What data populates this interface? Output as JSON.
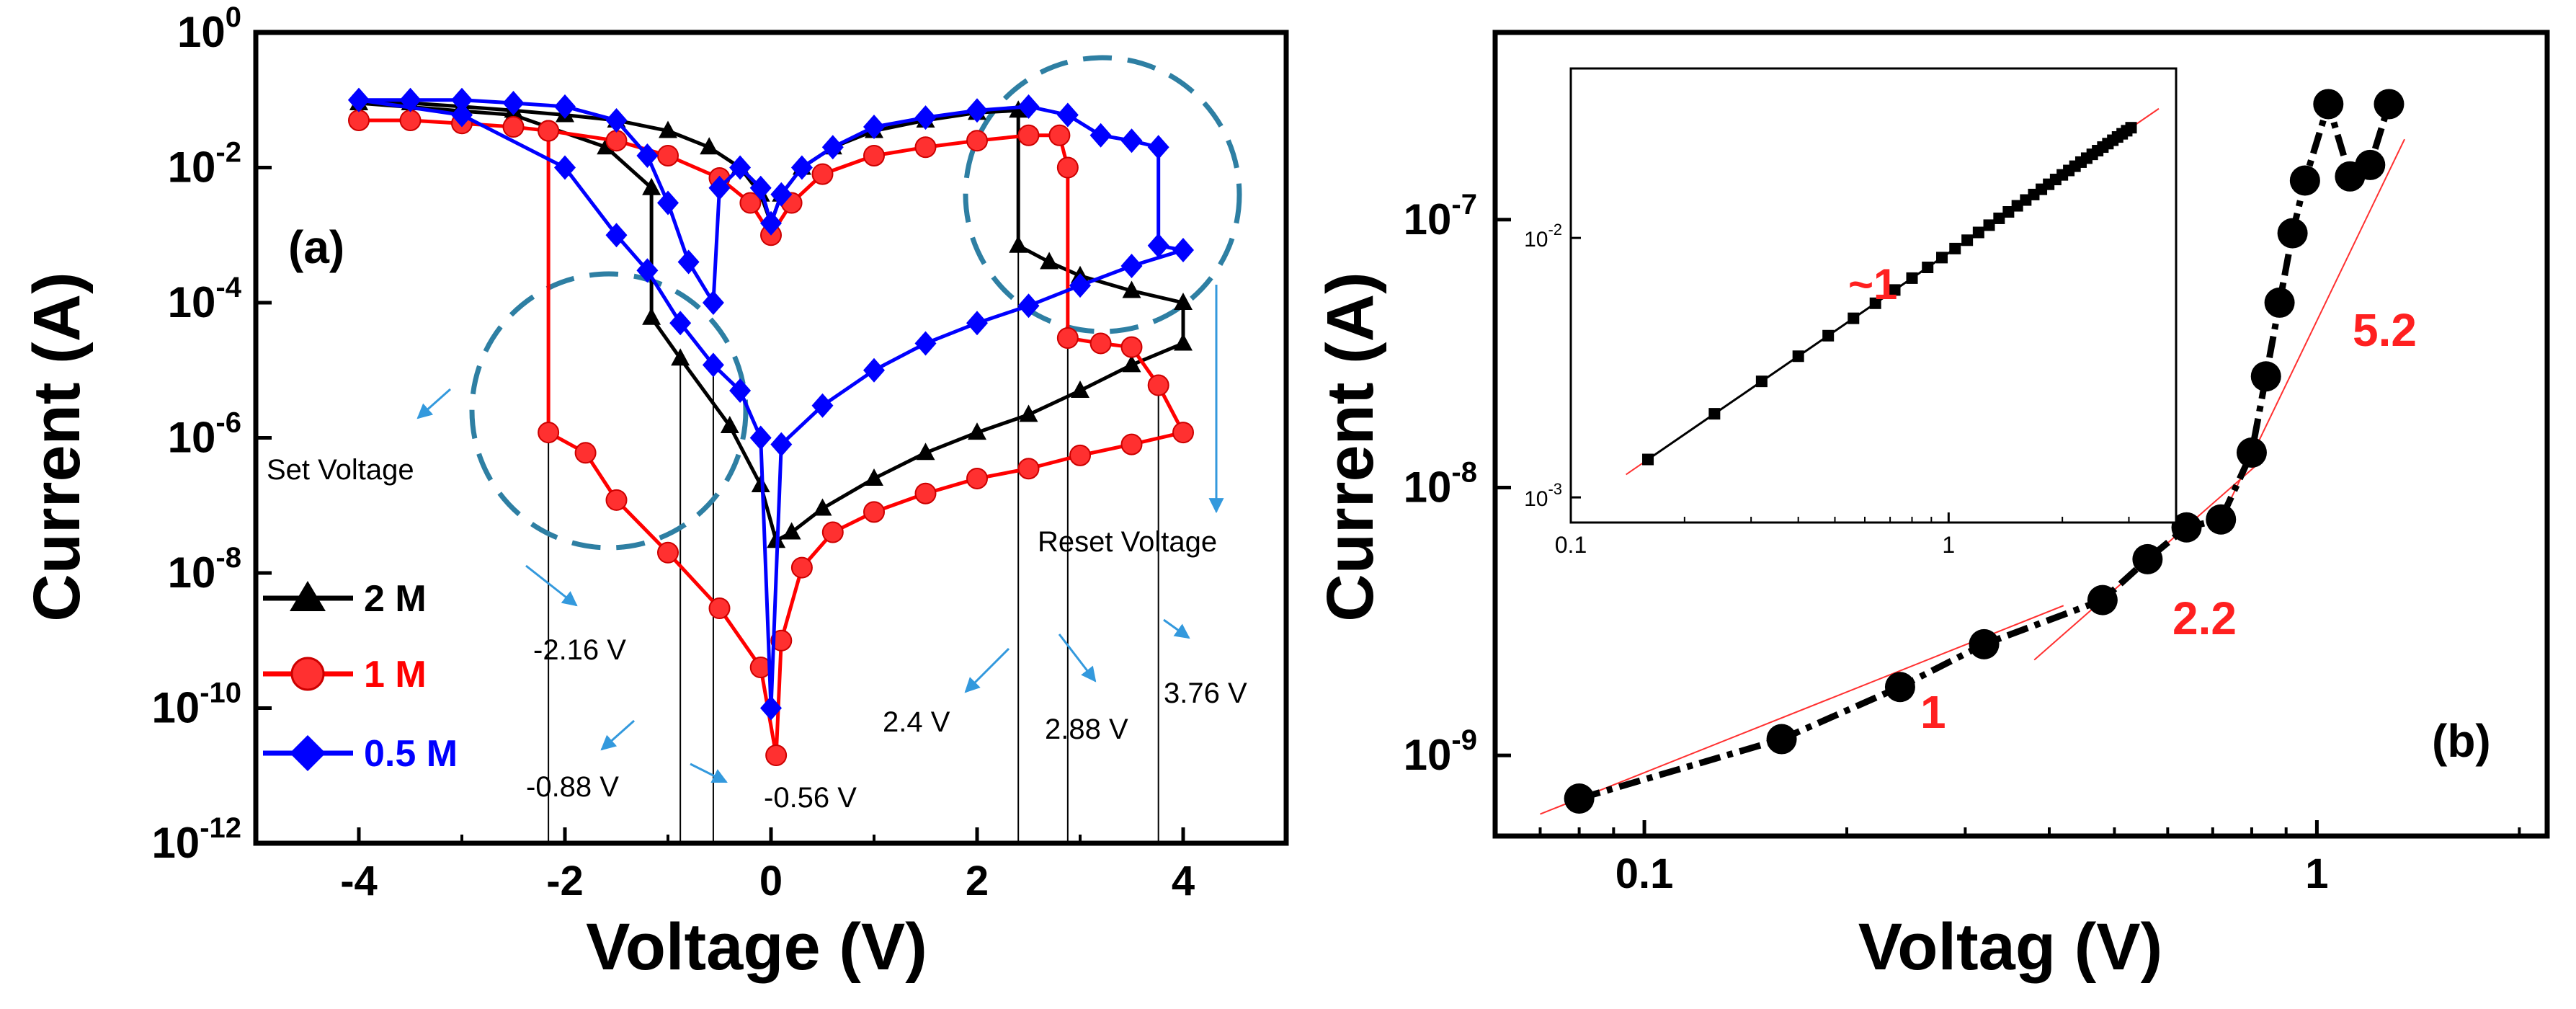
{
  "chart_data": [
    {
      "id": "a",
      "type": "line",
      "panel_label": "(a)",
      "xlabel": "Voltage (V)",
      "ylabel": "Current (A)",
      "xlim": [
        -5,
        5
      ],
      "ylim_log10": [
        -12,
        0
      ],
      "x_ticks": [
        -4,
        -2,
        0,
        2,
        4
      ],
      "x_tick_labels": [
        "-4",
        "-2",
        "0",
        "2",
        "4"
      ],
      "y_ticks_log10": [
        -12,
        -10,
        -8,
        -6,
        -4,
        -2,
        0
      ],
      "y_tick_base": "10",
      "y_tick_exponents": [
        "-12",
        "-10",
        "-8",
        "-6",
        "-4",
        "-2",
        "0"
      ],
      "series": [
        {
          "name": "2 M",
          "color": "#000000",
          "marker": "triangle",
          "points": [
            [
              -4,
              0.09
            ],
            [
              -3.5,
              0.09
            ],
            [
              -3,
              0.08
            ],
            [
              -2.5,
              0.07
            ],
            [
              -2,
              0.06
            ],
            [
              -1.5,
              0.05
            ],
            [
              -1,
              0.035
            ],
            [
              -0.6,
              0.02
            ],
            [
              -0.3,
              0.01
            ],
            [
              -0.1,
              0.004
            ],
            [
              0,
              0.0015
            ],
            [
              0.1,
              0.004
            ],
            [
              0.3,
              0.01
            ],
            [
              0.6,
              0.02
            ],
            [
              1,
              0.035
            ],
            [
              1.5,
              0.05
            ],
            [
              2,
              0.065
            ],
            [
              2.4,
              0.07
            ],
            [
              2.4,
              0.0007
            ],
            [
              2.7,
              0.0004
            ],
            [
              3,
              0.00025
            ],
            [
              3.5,
              0.00015
            ],
            [
              4,
              0.0001
            ],
            [
              4,
              2.5e-05
            ],
            [
              3.5,
              1.2e-05
            ],
            [
              3,
              5e-06
            ],
            [
              2.5,
              2.2e-06
            ],
            [
              2,
              1.2e-06
            ],
            [
              1.5,
              6e-07
            ],
            [
              1,
              2.5e-07
            ],
            [
              0.5,
              9e-08
            ],
            [
              0.2,
              4e-08
            ],
            [
              0.05,
              3e-08
            ],
            [
              -0.1,
              2e-07
            ],
            [
              -0.4,
              1.5e-06
            ],
            [
              -0.88,
              1.5e-05
            ],
            [
              -1.16,
              6e-05
            ],
            [
              -1.16,
              0.005
            ],
            [
              -1.6,
              0.02
            ],
            [
              -2.5,
              0.06
            ],
            [
              -4,
              0.09
            ]
          ]
        },
        {
          "name": "1 M",
          "color": "#ff0000",
          "marker": "circle",
          "points": [
            [
              -4,
              0.05
            ],
            [
              -3.5,
              0.05
            ],
            [
              -3,
              0.045
            ],
            [
              -2.5,
              0.04
            ],
            [
              -2.16,
              0.035
            ],
            [
              -1.5,
              0.025
            ],
            [
              -1,
              0.015
            ],
            [
              -0.5,
              0.007
            ],
            [
              -0.2,
              0.003
            ],
            [
              0,
              0.001
            ],
            [
              0.2,
              0.003
            ],
            [
              0.5,
              0.008
            ],
            [
              1,
              0.015
            ],
            [
              1.5,
              0.02
            ],
            [
              2,
              0.025
            ],
            [
              2.5,
              0.03
            ],
            [
              2.8,
              0.03
            ],
            [
              2.88,
              0.01
            ],
            [
              2.88,
              3e-05
            ],
            [
              3.2,
              2.5e-05
            ],
            [
              3.5,
              2.2e-05
            ],
            [
              3.76,
              6e-06
            ],
            [
              4,
              1.2e-06
            ],
            [
              3.5,
              8e-07
            ],
            [
              3,
              5.5e-07
            ],
            [
              2.5,
              3.5e-07
            ],
            [
              2,
              2.5e-07
            ],
            [
              1.5,
              1.5e-07
            ],
            [
              1,
              8e-08
            ],
            [
              0.6,
              4e-08
            ],
            [
              0.3,
              1.2e-08
            ],
            [
              0.1,
              1e-09
            ],
            [
              0.05,
              2e-11
            ],
            [
              -0.1,
              4e-10
            ],
            [
              -0.5,
              3e-09
            ],
            [
              -1,
              2e-08
            ],
            [
              -1.5,
              1.2e-07
            ],
            [
              -1.8,
              6e-07
            ],
            [
              -2.16,
              1.2e-06
            ],
            [
              -2.16,
              0.035
            ]
          ]
        },
        {
          "name": "0.5 M",
          "color": "#0000ff",
          "marker": "diamond",
          "points": [
            [
              -4,
              0.1
            ],
            [
              -3.5,
              0.1
            ],
            [
              -3,
              0.1
            ],
            [
              -2.5,
              0.09
            ],
            [
              -2,
              0.08
            ],
            [
              -1.5,
              0.05
            ],
            [
              -1.2,
              0.015
            ],
            [
              -1,
              0.003
            ],
            [
              -0.8,
              0.0004
            ],
            [
              -0.56,
              0.0001
            ],
            [
              -0.5,
              0.005
            ],
            [
              -0.3,
              0.01
            ],
            [
              -0.1,
              0.005
            ],
            [
              0,
              0.0015
            ],
            [
              0.1,
              0.004
            ],
            [
              0.3,
              0.01
            ],
            [
              0.6,
              0.02
            ],
            [
              1,
              0.04
            ],
            [
              1.5,
              0.055
            ],
            [
              2,
              0.07
            ],
            [
              2.5,
              0.08
            ],
            [
              2.88,
              0.06
            ],
            [
              3.2,
              0.03
            ],
            [
              3.5,
              0.025
            ],
            [
              3.76,
              0.02
            ],
            [
              3.76,
              0.0007
            ],
            [
              4,
              0.0006
            ],
            [
              3.5,
              0.00035
            ],
            [
              3,
              0.00018
            ],
            [
              2.5,
              9e-05
            ],
            [
              2,
              5e-05
            ],
            [
              1.5,
              2.5e-05
            ],
            [
              1,
              1e-05
            ],
            [
              0.5,
              3e-06
            ],
            [
              0.1,
              8e-07
            ],
            [
              0,
              1e-10
            ],
            [
              -0.1,
              1e-06
            ],
            [
              -0.3,
              5e-06
            ],
            [
              -0.56,
              1.2e-05
            ],
            [
              -0.88,
              5e-05
            ],
            [
              -1.2,
              0.0003
            ],
            [
              -1.5,
              0.001
            ],
            [
              -2,
              0.01
            ],
            [
              -3,
              0.06
            ],
            [
              -4,
              0.1
            ]
          ]
        }
      ],
      "vertical_markers": [
        -2.16,
        -0.88,
        -0.56,
        2.4,
        2.88,
        3.76
      ],
      "annotations": {
        "set_voltage": "Set Voltage",
        "reset_voltage": "Reset Voltage",
        "v1": "-2.16 V",
        "v2": "-0.88 V",
        "v3": "-0.56 V",
        "v4": "2.4 V",
        "v5": "2.88 V",
        "v6": "3.76 V"
      },
      "legend_position": "bottom-left",
      "accent_color": "#2e7fa3",
      "arrow_color": "#3399dd"
    },
    {
      "id": "b",
      "type": "scatter",
      "panel_label": "(b)",
      "xlabel": "Voltag (V)",
      "ylabel": "Current (A)",
      "x_scale": "log",
      "y_scale": "log",
      "xlim": [
        0.06,
        2.2
      ],
      "ylim": [
        5e-10,
        5e-07
      ],
      "x_ticks": [
        0.1,
        1
      ],
      "x_tick_labels": [
        "0.1",
        "1"
      ],
      "y_ticks": [
        1e-09,
        1e-08,
        1e-07
      ],
      "y_tick_base": "10",
      "y_tick_exponents": [
        "-9",
        "-8",
        "-7"
      ],
      "x": [
        0.08,
        0.16,
        0.24,
        0.32,
        0.48,
        0.56,
        0.64,
        0.72,
        0.8,
        0.84,
        0.88,
        0.92,
        0.96,
        1.04,
        1.12,
        1.2,
        1.28
      ],
      "y": [
        6.9e-10,
        1.15e-09,
        1.8e-09,
        2.6e-09,
        3.8e-09,
        5.4e-09,
        7.1e-09,
        7.6e-09,
        1.35e-08,
        2.6e-08,
        4.9e-08,
        8.9e-08,
        1.4e-07,
        2.7e-07,
        1.45e-07,
        1.6e-07,
        2.7e-07
      ],
      "slope_labels": [
        "1",
        "2.2",
        "5.2"
      ],
      "inset": {
        "x_scale": "log",
        "y_scale": "log",
        "xlim": [
          0.1,
          4
        ],
        "ylim": [
          0.0008,
          0.045
        ],
        "x_tick_labels": [
          "0.1",
          "1"
        ],
        "y_tick_base": "10",
        "y_tick_exponents": [
          "-3",
          "-2"
        ],
        "x": [
          0.16,
          0.24,
          0.32,
          0.4,
          0.48,
          0.56,
          0.64,
          0.72,
          0.8,
          0.88,
          0.96,
          1.04,
          1.12,
          1.2,
          1.28,
          1.36,
          1.44,
          1.52,
          1.6,
          1.68,
          1.76,
          1.84,
          1.92,
          2.0,
          2.08,
          2.16,
          2.24,
          2.32,
          2.4,
          2.48,
          2.56,
          2.64,
          2.72,
          2.8,
          2.88,
          2.96,
          3.04
        ],
        "y": [
          0.0014,
          0.0021,
          0.0028,
          0.0035,
          0.0042,
          0.0049,
          0.0056,
          0.0063,
          0.007,
          0.0077,
          0.0084,
          0.0091,
          0.0098,
          0.0105,
          0.0112,
          0.0119,
          0.0126,
          0.0133,
          0.014,
          0.0147,
          0.0154,
          0.0161,
          0.0168,
          0.0175,
          0.0182,
          0.0189,
          0.0196,
          0.0203,
          0.021,
          0.0217,
          0.0224,
          0.0231,
          0.0238,
          0.0245,
          0.0252,
          0.0259,
          0.0266
        ],
        "slope_label": "~1"
      }
    }
  ]
}
